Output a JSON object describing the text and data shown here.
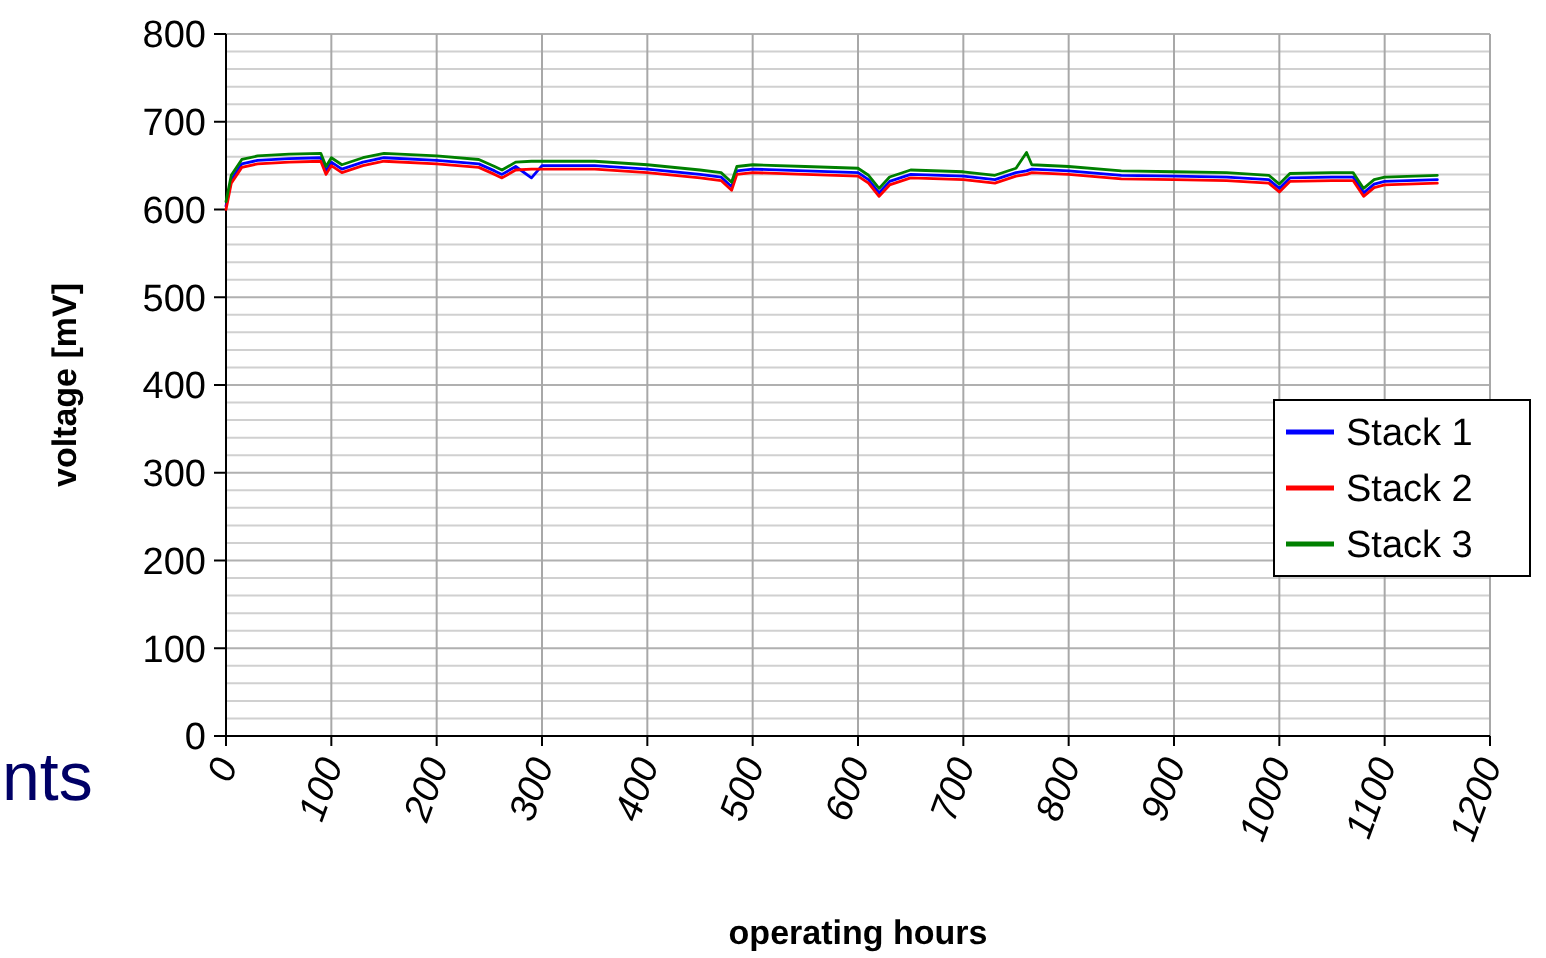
{
  "chart_data": {
    "type": "line",
    "xlabel": "operating hours",
    "ylabel": "voltage [mV]",
    "annotations": [
      "nts"
    ],
    "xlim": [
      0,
      1200
    ],
    "xticks": [
      0,
      100,
      200,
      300,
      400,
      500,
      600,
      700,
      800,
      900,
      1000,
      1100,
      1200
    ],
    "ylim": [
      0,
      800
    ],
    "yticks": [
      0,
      100,
      200,
      300,
      400,
      500,
      600,
      700,
      800
    ],
    "grid": true,
    "legend": "right",
    "marker": "none",
    "line_style": "solid",
    "x": [
      0,
      5,
      15,
      30,
      60,
      90,
      95,
      100,
      110,
      130,
      150,
      200,
      240,
      255,
      262,
      275,
      290,
      300,
      350,
      400,
      450,
      470,
      480,
      485,
      500,
      550,
      600,
      610,
      620,
      630,
      650,
      700,
      730,
      750,
      760,
      765,
      800,
      850,
      900,
      950,
      990,
      1000,
      1010,
      1050,
      1070,
      1080,
      1090,
      1100,
      1150
    ],
    "series": [
      {
        "name": "Stack 1",
        "color": "#0000ff",
        "values": [
          604,
          634,
          652,
          656,
          658,
          659,
          644,
          654,
          646,
          654,
          659,
          656,
          652,
          644,
          640,
          649,
          636,
          650,
          650,
          646,
          640,
          637,
          626,
          644,
          646,
          644,
          642,
          634,
          619,
          632,
          640,
          638,
          634,
          642,
          644,
          646,
          644,
          639,
          638,
          637,
          634,
          624,
          636,
          637,
          637,
          619,
          629,
          632,
          634
        ]
      },
      {
        "name": "Stack 2",
        "color": "#ff0000",
        "values": [
          600,
          630,
          648,
          652,
          654,
          655,
          640,
          650,
          642,
          650,
          655,
          652,
          648,
          640,
          636,
          645,
          646,
          646,
          646,
          642,
          636,
          633,
          622,
          640,
          642,
          640,
          638,
          630,
          615,
          628,
          636,
          634,
          630,
          638,
          640,
          642,
          640,
          635,
          634,
          633,
          630,
          620,
          632,
          633,
          633,
          615,
          625,
          628,
          630
        ]
      },
      {
        "name": "Stack 3",
        "color": "#008000",
        "values": [
          609,
          639,
          657,
          661,
          663,
          664,
          649,
          659,
          651,
          659,
          664,
          661,
          657,
          649,
          645,
          654,
          655,
          655,
          655,
          651,
          645,
          642,
          631,
          649,
          651,
          649,
          647,
          639,
          624,
          637,
          645,
          643,
          639,
          647,
          665,
          651,
          649,
          644,
          643,
          642,
          639,
          629,
          641,
          642,
          642,
          624,
          634,
          637,
          639
        ]
      }
    ]
  }
}
